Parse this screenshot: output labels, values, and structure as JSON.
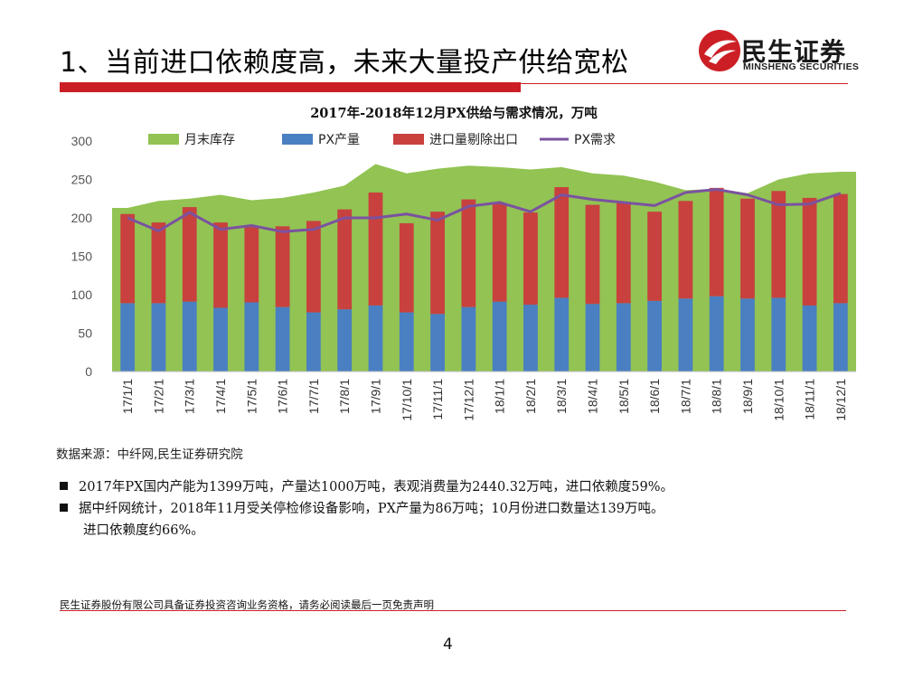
{
  "slide": {
    "title": "1、当前进口依赖度高，未来大量投产供给宽松",
    "page_number": "4",
    "disclaimer": "民生证券股份有限公司具备证券投资咨询业务资格，请务必阅读最后一页免责声明",
    "source": "数据来源：中纤网,民生证券研究院",
    "bullets": [
      "2017年PX国内产能为1399万吨，产量达1000万吨，表观消费量为2440.32万吨，进口依赖度59%。",
      "据中纤网统计，2018年11月受关停检修设备影响，PX产量为86万吨；10月份进口数量达139万吨。"
    ],
    "bullet_continuation": "进口依赖度约66%。"
  },
  "logo": {
    "name_cn": "民生证券",
    "name_en": "MINSHENG SECURITIES"
  },
  "colors": {
    "brand_red": "#cc1f25",
    "inventory": "#92c353",
    "production": "#4a7fc1",
    "net_import": "#c8413e",
    "demand": "#7b52a0"
  },
  "chart_data": {
    "type": "bar",
    "title": "2017年-2018年12月PX供给与需求情况，万吨",
    "xlabel": "",
    "ylabel": "",
    "ylim": [
      0,
      300
    ],
    "yticks": [
      0,
      50,
      100,
      150,
      200,
      250,
      300
    ],
    "categories": [
      "17/1/1",
      "17/2/1",
      "17/3/1",
      "17/4/1",
      "17/5/1",
      "17/6/1",
      "17/7/1",
      "17/8/1",
      "17/9/1",
      "17/10/1",
      "17/11/1",
      "17/12/1",
      "18/1/1",
      "18/2/1",
      "18/3/1",
      "18/4/1",
      "18/5/1",
      "18/6/1",
      "18/7/1",
      "18/8/1",
      "18/9/1",
      "18/10/1",
      "18/11/1",
      "18/12/1"
    ],
    "legend_position": "top",
    "series": [
      {
        "name": "月末库存",
        "kind": "area",
        "values": [
          213,
          222,
          225,
          230,
          223,
          226,
          233,
          242,
          270,
          258,
          264,
          268,
          266,
          263,
          266,
          258,
          255,
          247,
          236,
          238,
          232,
          250,
          258,
          260
        ]
      },
      {
        "name": "PX产量",
        "kind": "stacked_bar",
        "values": [
          89,
          89,
          91,
          83,
          90,
          84,
          77,
          81,
          86,
          77,
          75,
          84,
          91,
          87,
          96,
          88,
          89,
          92,
          95,
          98,
          95,
          96,
          86,
          89
        ]
      },
      {
        "name": "进口量剔除出口",
        "kind": "stacked_bar",
        "values": [
          116,
          105,
          123,
          111,
          98,
          105,
          119,
          130,
          147,
          116,
          133,
          140,
          128,
          120,
          144,
          129,
          131,
          116,
          127,
          141,
          130,
          139,
          140,
          142
        ]
      },
      {
        "name": "PX需求",
        "kind": "line",
        "values": [
          200,
          183,
          207,
          185,
          190,
          182,
          185,
          200,
          200,
          205,
          197,
          215,
          220,
          208,
          230,
          224,
          220,
          216,
          233,
          237,
          230,
          217,
          218,
          232
        ]
      }
    ]
  }
}
